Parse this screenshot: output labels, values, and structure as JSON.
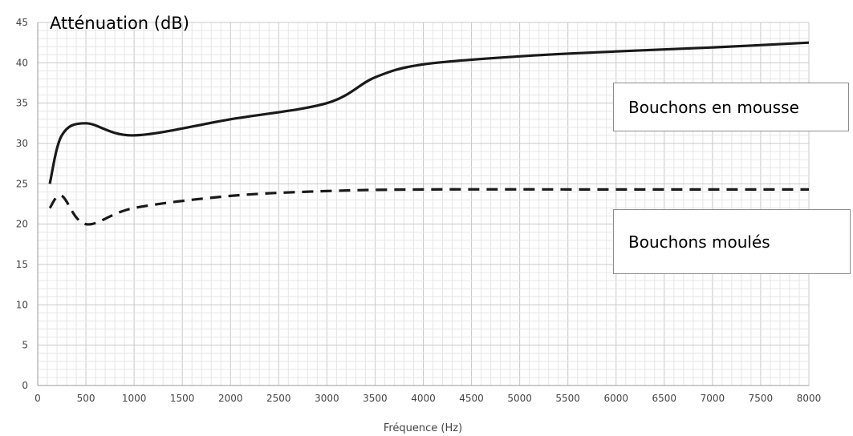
{
  "chart_data": {
    "type": "line",
    "ylabel": "Atténuation (dB)",
    "xlabel": "Fréquence (Hz)",
    "xlim": [
      0,
      8000
    ],
    "ylim": [
      0,
      45
    ],
    "x_ticks": [
      "0",
      "500",
      "1000",
      "1500",
      "2000",
      "2500",
      "3000",
      "3500",
      "4000",
      "4500",
      "5000",
      "5500",
      "6000",
      "6500",
      "7000",
      "7500",
      "8000"
    ],
    "y_ticks": [
      "0",
      "5",
      "10",
      "15",
      "20",
      "25",
      "30",
      "35",
      "40",
      "45"
    ],
    "grid": true,
    "series": [
      {
        "name": "Bouchons en mousse",
        "style": "solid",
        "color": "#1a1a1a",
        "points": [
          [
            125,
            25
          ],
          [
            250,
            31
          ],
          [
            500,
            32.5
          ],
          [
            1000,
            31
          ],
          [
            2000,
            33
          ],
          [
            3000,
            35
          ],
          [
            3500,
            38.2
          ],
          [
            4000,
            39.8
          ],
          [
            5000,
            40.8
          ],
          [
            6000,
            41.4
          ],
          [
            7000,
            41.9
          ],
          [
            8000,
            42.5
          ]
        ]
      },
      {
        "name": "Bouchons moulés",
        "style": "dashed",
        "color": "#1a1a1a",
        "points": [
          [
            125,
            22
          ],
          [
            250,
            23.5
          ],
          [
            500,
            20
          ],
          [
            1000,
            22
          ],
          [
            2000,
            23.5
          ],
          [
            3000,
            24.1
          ],
          [
            4000,
            24.3
          ],
          [
            6000,
            24.3
          ],
          [
            8000,
            24.3
          ]
        ]
      }
    ]
  }
}
